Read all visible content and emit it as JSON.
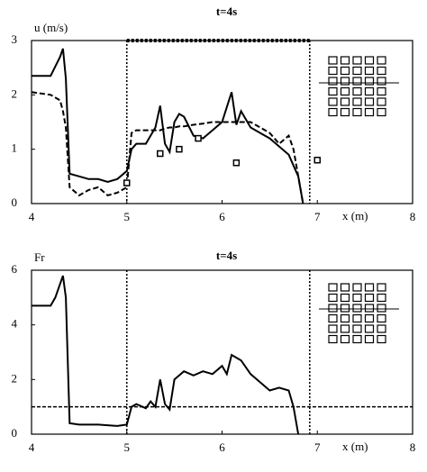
{
  "chart_data": [
    {
      "type": "line",
      "title": "t=4s",
      "ylabel": "u (m/s)",
      "xlabel": "x (m)",
      "xlim": [
        4,
        8
      ],
      "xticks": [
        4,
        5,
        6,
        7,
        8
      ],
      "ylim": [
        0,
        3
      ],
      "yticks": [
        0,
        1,
        2,
        3
      ],
      "region": [
        5,
        6.92
      ],
      "region_top": true,
      "x": [
        4.0,
        4.2,
        4.3,
        4.33,
        4.36,
        4.4,
        4.5,
        4.6,
        4.7,
        4.8,
        4.9,
        5.0,
        5.05,
        5.1,
        5.2,
        5.3,
        5.35,
        5.4,
        5.45,
        5.5,
        5.55,
        5.6,
        5.7,
        5.8,
        5.9,
        6.0,
        6.1,
        6.15,
        6.2,
        6.3,
        6.4,
        6.5,
        6.6,
        6.7,
        6.75,
        6.8,
        6.85
      ],
      "series": [
        {
          "style": "solid",
          "color": "#000000",
          "values": [
            2.35,
            2.35,
            2.7,
            2.85,
            2.3,
            0.55,
            0.5,
            0.45,
            0.45,
            0.4,
            0.45,
            0.6,
            1.0,
            1.1,
            1.1,
            1.4,
            1.8,
            1.1,
            0.95,
            1.5,
            1.65,
            1.6,
            1.25,
            1.2,
            1.35,
            1.5,
            2.05,
            1.45,
            1.7,
            1.4,
            1.3,
            1.2,
            1.05,
            0.9,
            0.7,
            0.5,
            0.0
          ]
        },
        {
          "style": "dashed",
          "color": "#000000",
          "values": [
            2.05,
            2.0,
            1.9,
            1.7,
            1.4,
            0.3,
            0.15,
            0.25,
            0.3,
            0.15,
            0.2,
            0.3,
            1.3,
            1.35,
            1.35,
            1.35,
            1.35,
            1.38,
            1.4,
            1.4,
            1.42,
            1.42,
            1.45,
            1.47,
            1.5,
            1.5,
            1.5,
            1.5,
            1.5,
            1.5,
            1.4,
            1.3,
            1.1,
            1.25,
            1.0,
            0.5,
            0.0
          ]
        },
        {
          "style": "markers",
          "color": "#000000",
          "x": [
            5.0,
            5.35,
            5.55,
            5.75,
            6.15,
            7.0
          ],
          "values": [
            0.38,
            0.92,
            1.0,
            1.2,
            0.75,
            0.8
          ]
        }
      ]
    },
    {
      "type": "line",
      "title": "t=4s",
      "ylabel": "Fr",
      "xlabel": "x (m)",
      "xlim": [
        4,
        8
      ],
      "xticks": [
        4,
        5,
        6,
        7,
        8
      ],
      "ylim": [
        0,
        6
      ],
      "yticks": [
        0,
        2,
        4,
        6
      ],
      "region": [
        5,
        6.92
      ],
      "region_top": false,
      "hlines": [
        1
      ],
      "x": [
        4.0,
        4.2,
        4.25,
        4.3,
        4.33,
        4.36,
        4.4,
        4.5,
        4.7,
        4.9,
        5.0,
        5.05,
        5.1,
        5.2,
        5.25,
        5.3,
        5.35,
        5.4,
        5.45,
        5.5,
        5.6,
        5.7,
        5.8,
        5.9,
        6.0,
        6.05,
        6.1,
        6.2,
        6.3,
        6.4,
        6.5,
        6.6,
        6.7,
        6.75,
        6.8
      ],
      "series": [
        {
          "style": "solid",
          "color": "#000000",
          "values": [
            4.7,
            4.7,
            5.0,
            5.5,
            5.8,
            5.0,
            0.4,
            0.35,
            0.35,
            0.3,
            0.35,
            1.0,
            1.1,
            0.95,
            1.2,
            1.0,
            2.0,
            1.1,
            0.9,
            2.0,
            2.3,
            2.15,
            2.3,
            2.2,
            2.5,
            2.2,
            2.9,
            2.7,
            2.2,
            1.9,
            1.6,
            1.7,
            1.6,
            1.0,
            0.0
          ]
        }
      ]
    }
  ]
}
